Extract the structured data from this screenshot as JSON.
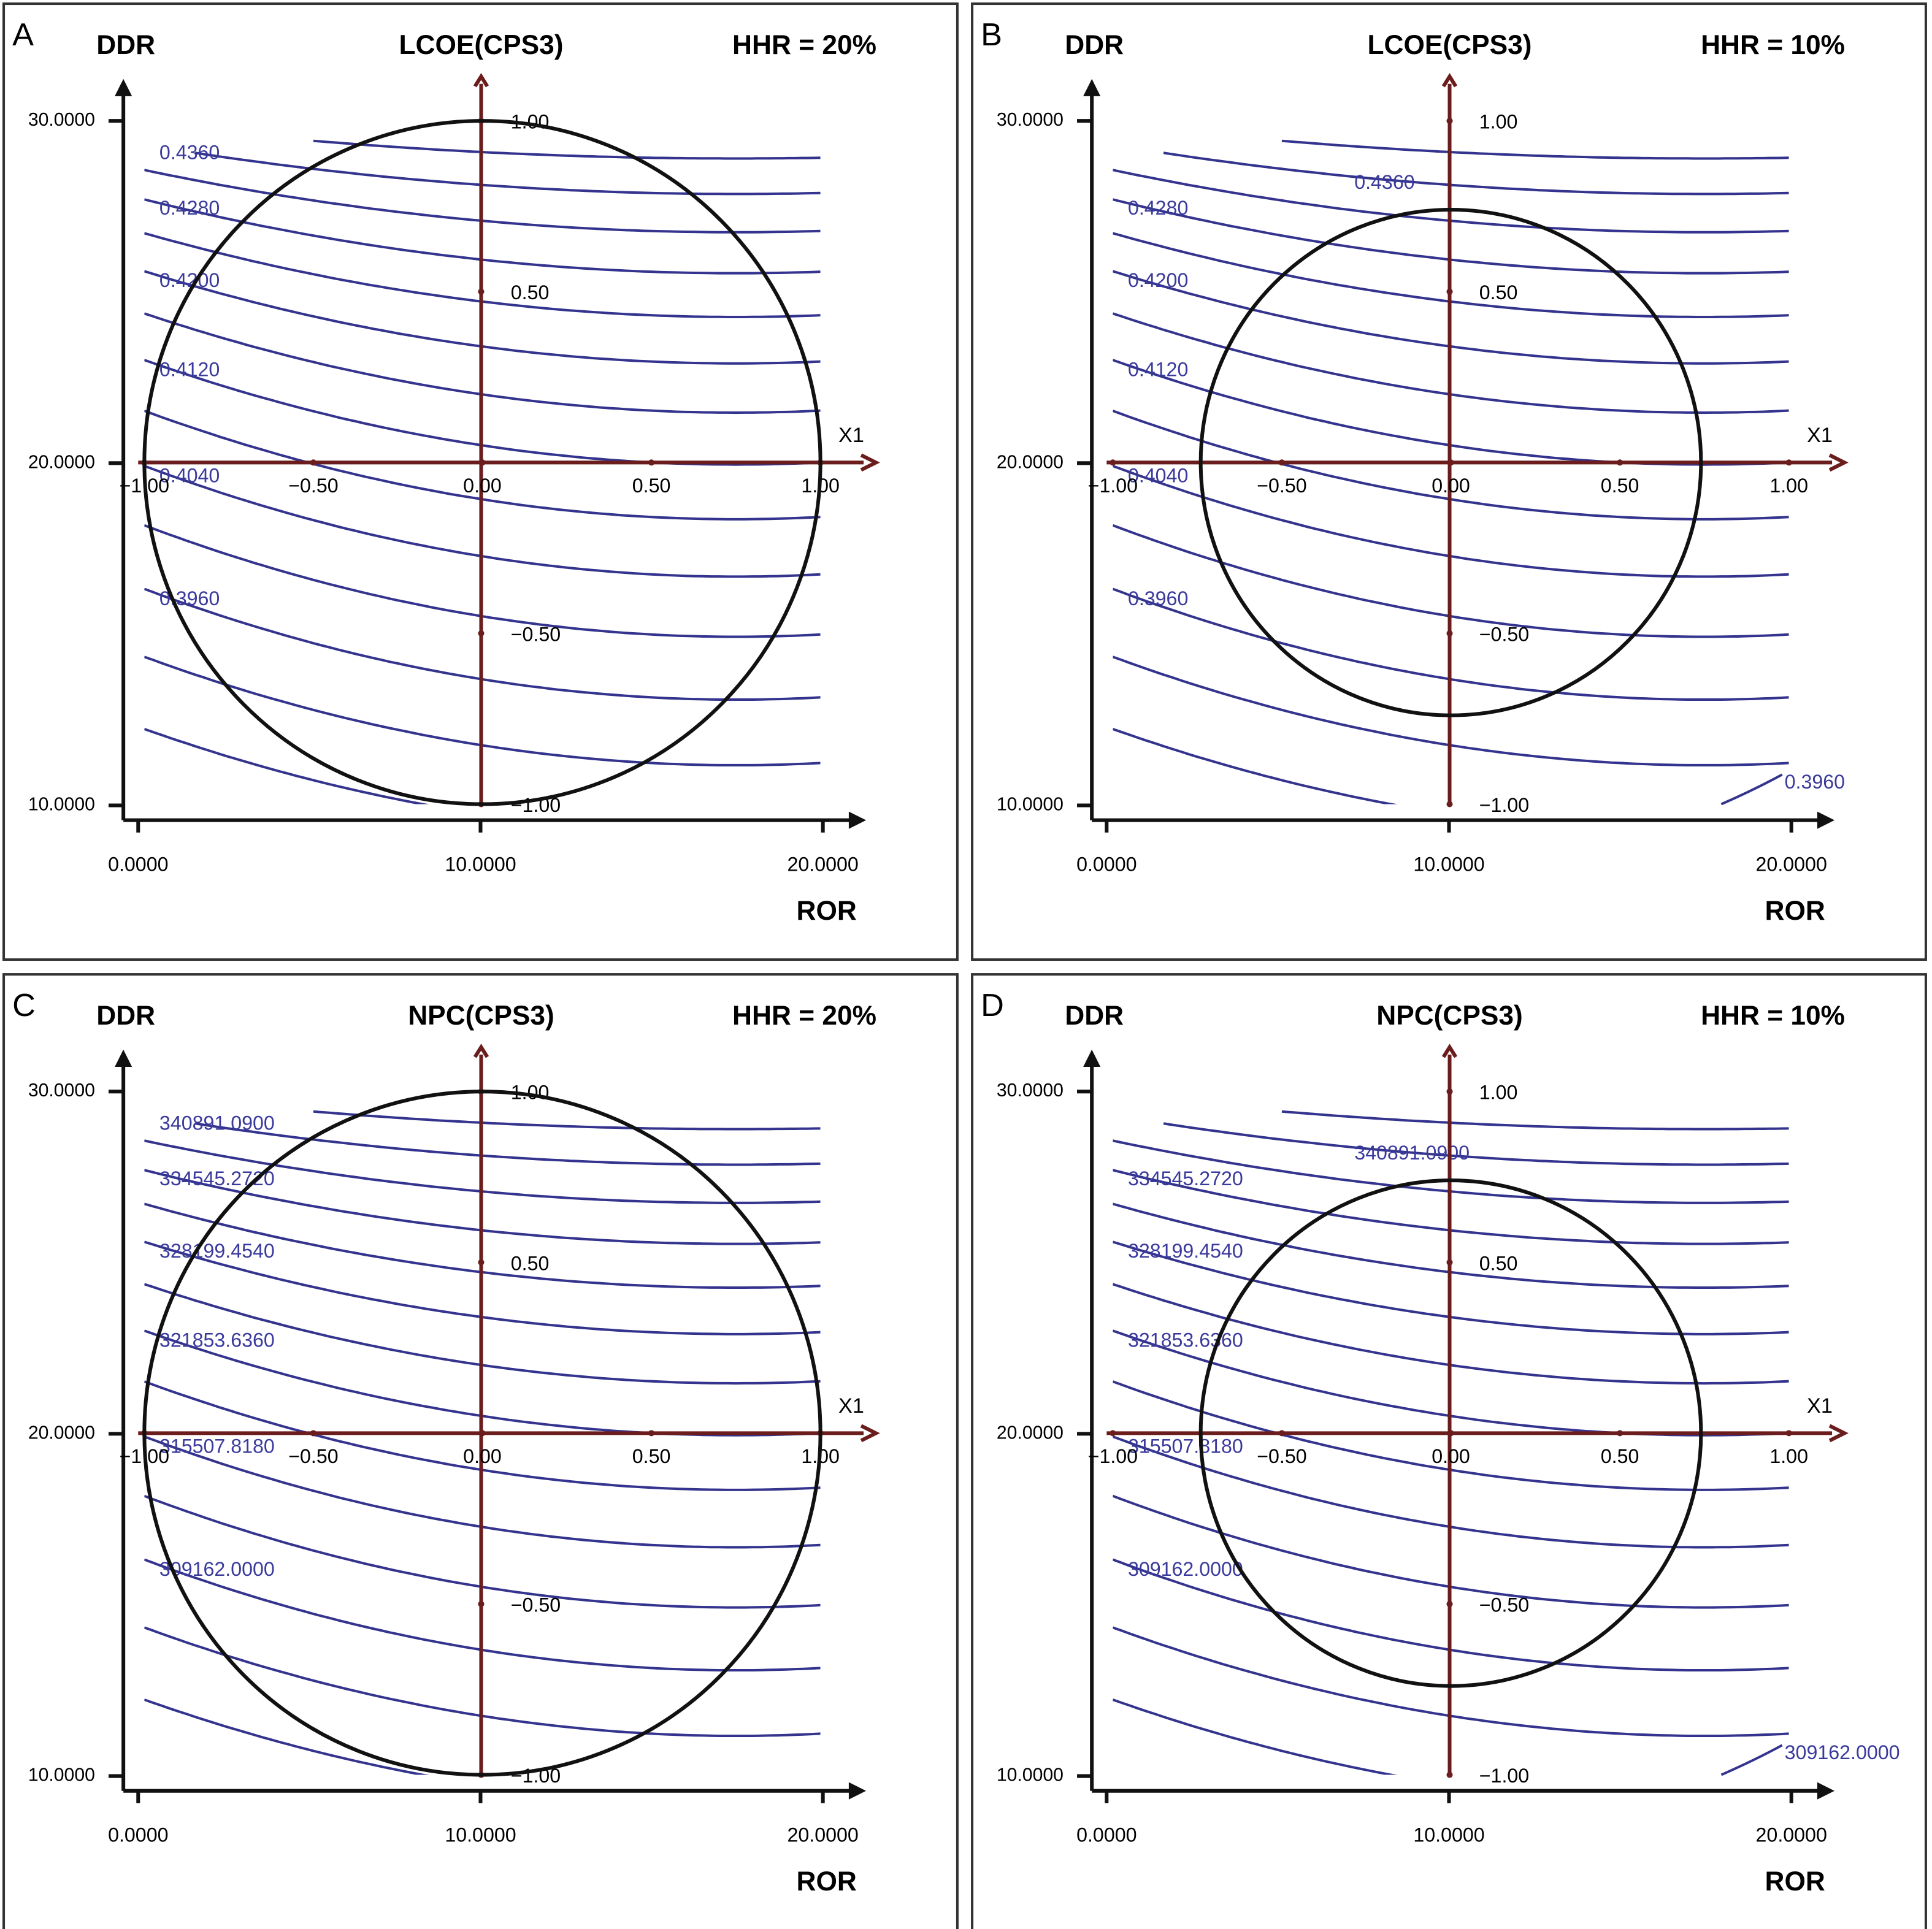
{
  "chart_data": [
    {
      "type": "contour",
      "panel_label": "A",
      "title": "LCOE(CPS3)",
      "y_label": "DDR",
      "x_label": "ROR",
      "annotation": "HHR = 20%",
      "coded_axis_label": "X1",
      "xlim": [
        0,
        20
      ],
      "xticks": [
        {
          "value": 0,
          "label": "0.0000"
        },
        {
          "value": 10,
          "label": "10.0000"
        },
        {
          "value": 20,
          "label": "20.0000"
        }
      ],
      "ylim": [
        10,
        30
      ],
      "yticks": [
        {
          "value": 10,
          "label": "10.0000"
        },
        {
          "value": 20,
          "label": "20.0000"
        },
        {
          "value": 30,
          "label": "30.0000"
        }
      ],
      "coded_xlim": [
        -1,
        1
      ],
      "coded_xticks": [
        {
          "value": -1,
          "label": "−1.00"
        },
        {
          "value": -0.5,
          "label": "−0.50"
        },
        {
          "value": 0,
          "label": "0.00"
        },
        {
          "value": 0.5,
          "label": "0.50"
        },
        {
          "value": 1,
          "label": "1.00"
        }
      ],
      "coded_ylim": [
        -1,
        1
      ],
      "coded_yticks": [
        {
          "value": 1,
          "label": "1.00"
        },
        {
          "value": 0.5,
          "label": "0.50"
        },
        {
          "value": -0.5,
          "label": "−0.50"
        },
        {
          "value": -1,
          "label": "−1.00"
        }
      ],
      "region_radius": 1,
      "contour_levels": [
        {
          "value": 0.436,
          "label": "0.4360"
        },
        {
          "value": 0.428,
          "label": "0.4280"
        },
        {
          "value": 0.42,
          "label": "0.4200"
        },
        {
          "value": 0.412,
          "label": "0.4120"
        },
        {
          "value": 0.404,
          "label": "0.4040"
        },
        {
          "value": 0.396,
          "label": "0.3960"
        }
      ],
      "color": "#34348f"
    },
    {
      "type": "contour",
      "panel_label": "B",
      "title": "LCOE(CPS3)",
      "y_label": "DDR",
      "x_label": "ROR",
      "annotation": "HHR = 10%",
      "coded_axis_label": "X1",
      "xlim": [
        0,
        20
      ],
      "xticks": [
        {
          "value": 0,
          "label": "0.0000"
        },
        {
          "value": 10,
          "label": "10.0000"
        },
        {
          "value": 20,
          "label": "20.0000"
        }
      ],
      "ylim": [
        10,
        30
      ],
      "yticks": [
        {
          "value": 10,
          "label": "10.0000"
        },
        {
          "value": 20,
          "label": "20.0000"
        },
        {
          "value": 30,
          "label": "30.0000"
        }
      ],
      "coded_xlim": [
        -1,
        1
      ],
      "coded_xticks": [
        {
          "value": -1,
          "label": "−1.00"
        },
        {
          "value": -0.5,
          "label": "−0.50"
        },
        {
          "value": 0,
          "label": "0.00"
        },
        {
          "value": 0.5,
          "label": "0.50"
        },
        {
          "value": 1,
          "label": "1.00"
        }
      ],
      "coded_ylim": [
        -1,
        1
      ],
      "coded_yticks": [
        {
          "value": 1,
          "label": "1.00"
        },
        {
          "value": 0.5,
          "label": "0.50"
        },
        {
          "value": -0.5,
          "label": "−0.50"
        },
        {
          "value": -1,
          "label": "−1.00"
        }
      ],
      "region_radius": 0.74,
      "contour_levels": [
        {
          "value": 0.436,
          "label": "0.4360"
        },
        {
          "value": 0.428,
          "label": "0.4280"
        },
        {
          "value": 0.42,
          "label": "0.4200"
        },
        {
          "value": 0.412,
          "label": "0.4120"
        },
        {
          "value": 0.404,
          "label": "0.4040"
        },
        {
          "value": 0.396,
          "label": "0.3960"
        }
      ],
      "corner_contour": {
        "value": 0.396,
        "label": "0.3960"
      },
      "color": "#34348f"
    },
    {
      "type": "contour",
      "panel_label": "C",
      "title": "NPC(CPS3)",
      "y_label": "DDR",
      "x_label": "ROR",
      "annotation": "HHR = 20%",
      "coded_axis_label": "X1",
      "xlim": [
        0,
        20
      ],
      "xticks": [
        {
          "value": 0,
          "label": "0.0000"
        },
        {
          "value": 10,
          "label": "10.0000"
        },
        {
          "value": 20,
          "label": "20.0000"
        }
      ],
      "ylim": [
        10,
        30
      ],
      "yticks": [
        {
          "value": 10,
          "label": "10.0000"
        },
        {
          "value": 20,
          "label": "20.0000"
        },
        {
          "value": 30,
          "label": "30.0000"
        }
      ],
      "coded_xlim": [
        -1,
        1
      ],
      "coded_xticks": [
        {
          "value": -1,
          "label": "−1.00"
        },
        {
          "value": -0.5,
          "label": "−0.50"
        },
        {
          "value": 0,
          "label": "0.00"
        },
        {
          "value": 0.5,
          "label": "0.50"
        },
        {
          "value": 1,
          "label": "1.00"
        }
      ],
      "coded_ylim": [
        -1,
        1
      ],
      "coded_yticks": [
        {
          "value": 1,
          "label": "1.00"
        },
        {
          "value": 0.5,
          "label": "0.50"
        },
        {
          "value": -0.5,
          "label": "−0.50"
        },
        {
          "value": -1,
          "label": "−1.00"
        }
      ],
      "region_radius": 1,
      "contour_levels": [
        {
          "value": 340891.09,
          "label": "340891.0900"
        },
        {
          "value": 334545.272,
          "label": "334545.2720"
        },
        {
          "value": 328199.454,
          "label": "328199.4540"
        },
        {
          "value": 321853.636,
          "label": "321853.6360"
        },
        {
          "value": 315507.818,
          "label": "315507.8180"
        },
        {
          "value": 309162,
          "label": "309162.0000"
        }
      ],
      "color": "#34348f"
    },
    {
      "type": "contour",
      "panel_label": "D",
      "title": "NPC(CPS3)",
      "y_label": "DDR",
      "x_label": "ROR",
      "annotation": "HHR = 10%",
      "coded_axis_label": "X1",
      "xlim": [
        0,
        20
      ],
      "xticks": [
        {
          "value": 0,
          "label": "0.0000"
        },
        {
          "value": 10,
          "label": "10.0000"
        },
        {
          "value": 20,
          "label": "20.0000"
        }
      ],
      "ylim": [
        10,
        30
      ],
      "yticks": [
        {
          "value": 10,
          "label": "10.0000"
        },
        {
          "value": 20,
          "label": "20.0000"
        },
        {
          "value": 30,
          "label": "30.0000"
        }
      ],
      "coded_xlim": [
        -1,
        1
      ],
      "coded_xticks": [
        {
          "value": -1,
          "label": "−1.00"
        },
        {
          "value": -0.5,
          "label": "−0.50"
        },
        {
          "value": 0,
          "label": "0.00"
        },
        {
          "value": 0.5,
          "label": "0.50"
        },
        {
          "value": 1,
          "label": "1.00"
        }
      ],
      "coded_ylim": [
        -1,
        1
      ],
      "coded_yticks": [
        {
          "value": 1,
          "label": "1.00"
        },
        {
          "value": 0.5,
          "label": "0.50"
        },
        {
          "value": -0.5,
          "label": "−0.50"
        },
        {
          "value": -1,
          "label": "−1.00"
        }
      ],
      "region_radius": 0.74,
      "contour_levels": [
        {
          "value": 340891.09,
          "label": "340891.0900"
        },
        {
          "value": 334545.272,
          "label": "334545.2720"
        },
        {
          "value": 328199.454,
          "label": "328199.4540"
        },
        {
          "value": 321853.636,
          "label": "321853.6360"
        },
        {
          "value": 315507.818,
          "label": "315507.8180"
        },
        {
          "value": 309162,
          "label": "309162.0000"
        }
      ],
      "corner_contour": {
        "value": 309162,
        "label": "309162.0000"
      },
      "color": "#34348f"
    }
  ]
}
